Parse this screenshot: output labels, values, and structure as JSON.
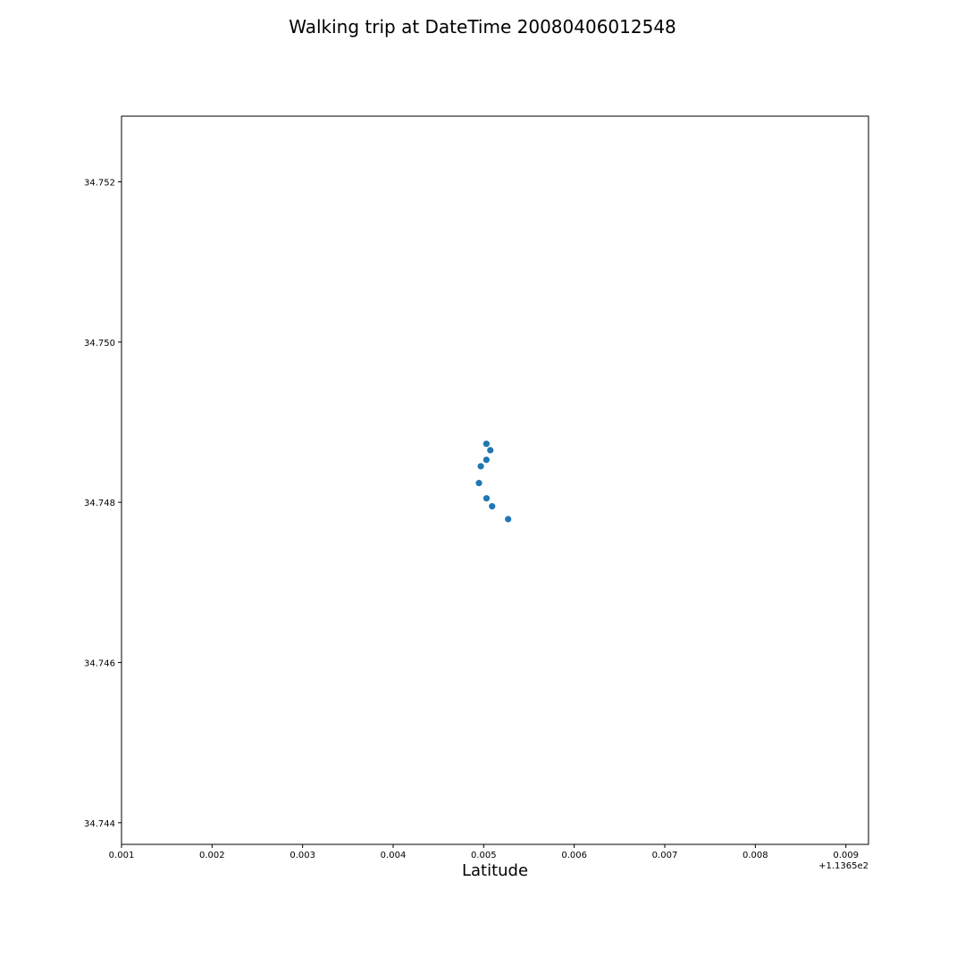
{
  "chart_data": {
    "type": "scatter",
    "title": "Walking trip at DateTime 20080406012548",
    "xlabel": "Latitude",
    "ylabel": "",
    "x_offset_label": "+1.1365e2",
    "xlim": [
      0.001,
      0.00925
    ],
    "ylim": [
      34.74373,
      34.75282
    ],
    "x_ticks": [
      0.001,
      0.002,
      0.003,
      0.004,
      0.005,
      0.006,
      0.007,
      0.008,
      0.009
    ],
    "x_tick_labels": [
      "0.001",
      "0.002",
      "0.003",
      "0.004",
      "0.005",
      "0.006",
      "0.007",
      "0.008",
      "0.009"
    ],
    "y_ticks": [
      34.744,
      34.746,
      34.748,
      34.75,
      34.752
    ],
    "y_tick_labels": [
      "34.744",
      "34.746",
      "34.748",
      "34.750",
      "34.752"
    ],
    "grid": false,
    "marker_color": "#1f77b4",
    "points": [
      {
        "x": 0.00503,
        "y": 34.74873
      },
      {
        "x": 0.005073,
        "y": 34.74865
      },
      {
        "x": 0.00503,
        "y": 34.74853
      },
      {
        "x": 0.004968,
        "y": 34.74845
      },
      {
        "x": 0.004948,
        "y": 34.74824
      },
      {
        "x": 0.005031,
        "y": 34.74805
      },
      {
        "x": 0.005093,
        "y": 34.74795
      },
      {
        "x": 0.00527,
        "y": 34.74779
      }
    ]
  }
}
